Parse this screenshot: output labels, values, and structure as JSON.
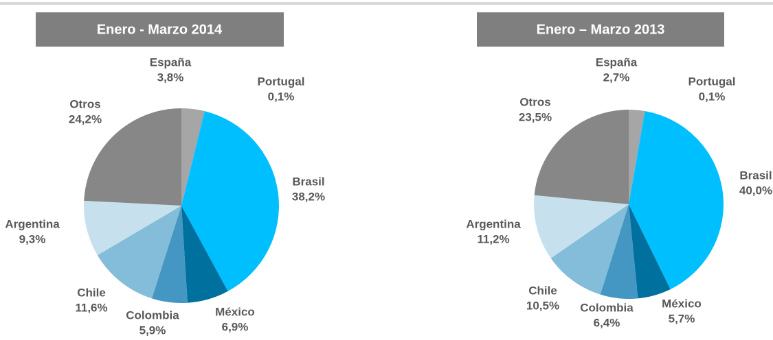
{
  "chart_data": [
    {
      "type": "pie",
      "title": "Enero - Marzo 2014",
      "categories": [
        "España",
        "Portugal",
        "Brasil",
        "México",
        "Colombia",
        "Chile",
        "Argentina",
        "Otros"
      ],
      "values": [
        3.8,
        0.1,
        38.2,
        6.9,
        5.9,
        11.6,
        9.3,
        24.2
      ],
      "value_labels": [
        "3,8%",
        "0,1%",
        "38,2%",
        "6,9%",
        "5,9%",
        "11,6%",
        "9,3%",
        "24,2%"
      ],
      "colors": [
        "#a6a6a6",
        "#1ab2e8",
        "#00bfff",
        "#00709f",
        "#4397c2",
        "#84bdd9",
        "#c6e1ed",
        "#878787"
      ]
    },
    {
      "type": "pie",
      "title": "Enero – Marzo 2013",
      "categories": [
        "España",
        "Portugal",
        "Brasil",
        "México",
        "Colombia",
        "Chile",
        "Argentina",
        "Otros"
      ],
      "values": [
        2.7,
        0.1,
        40.0,
        5.7,
        6.4,
        10.5,
        11.2,
        23.5
      ],
      "value_labels": [
        "2,7%",
        "0,1%",
        "40,0%",
        "5,7%",
        "6,4%",
        "10,5%",
        "11,2%",
        "23,5%"
      ],
      "colors": [
        "#a6a6a6",
        "#1ab2e8",
        "#00bfff",
        "#00709f",
        "#4397c2",
        "#84bdd9",
        "#c6e1ed",
        "#878787"
      ]
    }
  ]
}
